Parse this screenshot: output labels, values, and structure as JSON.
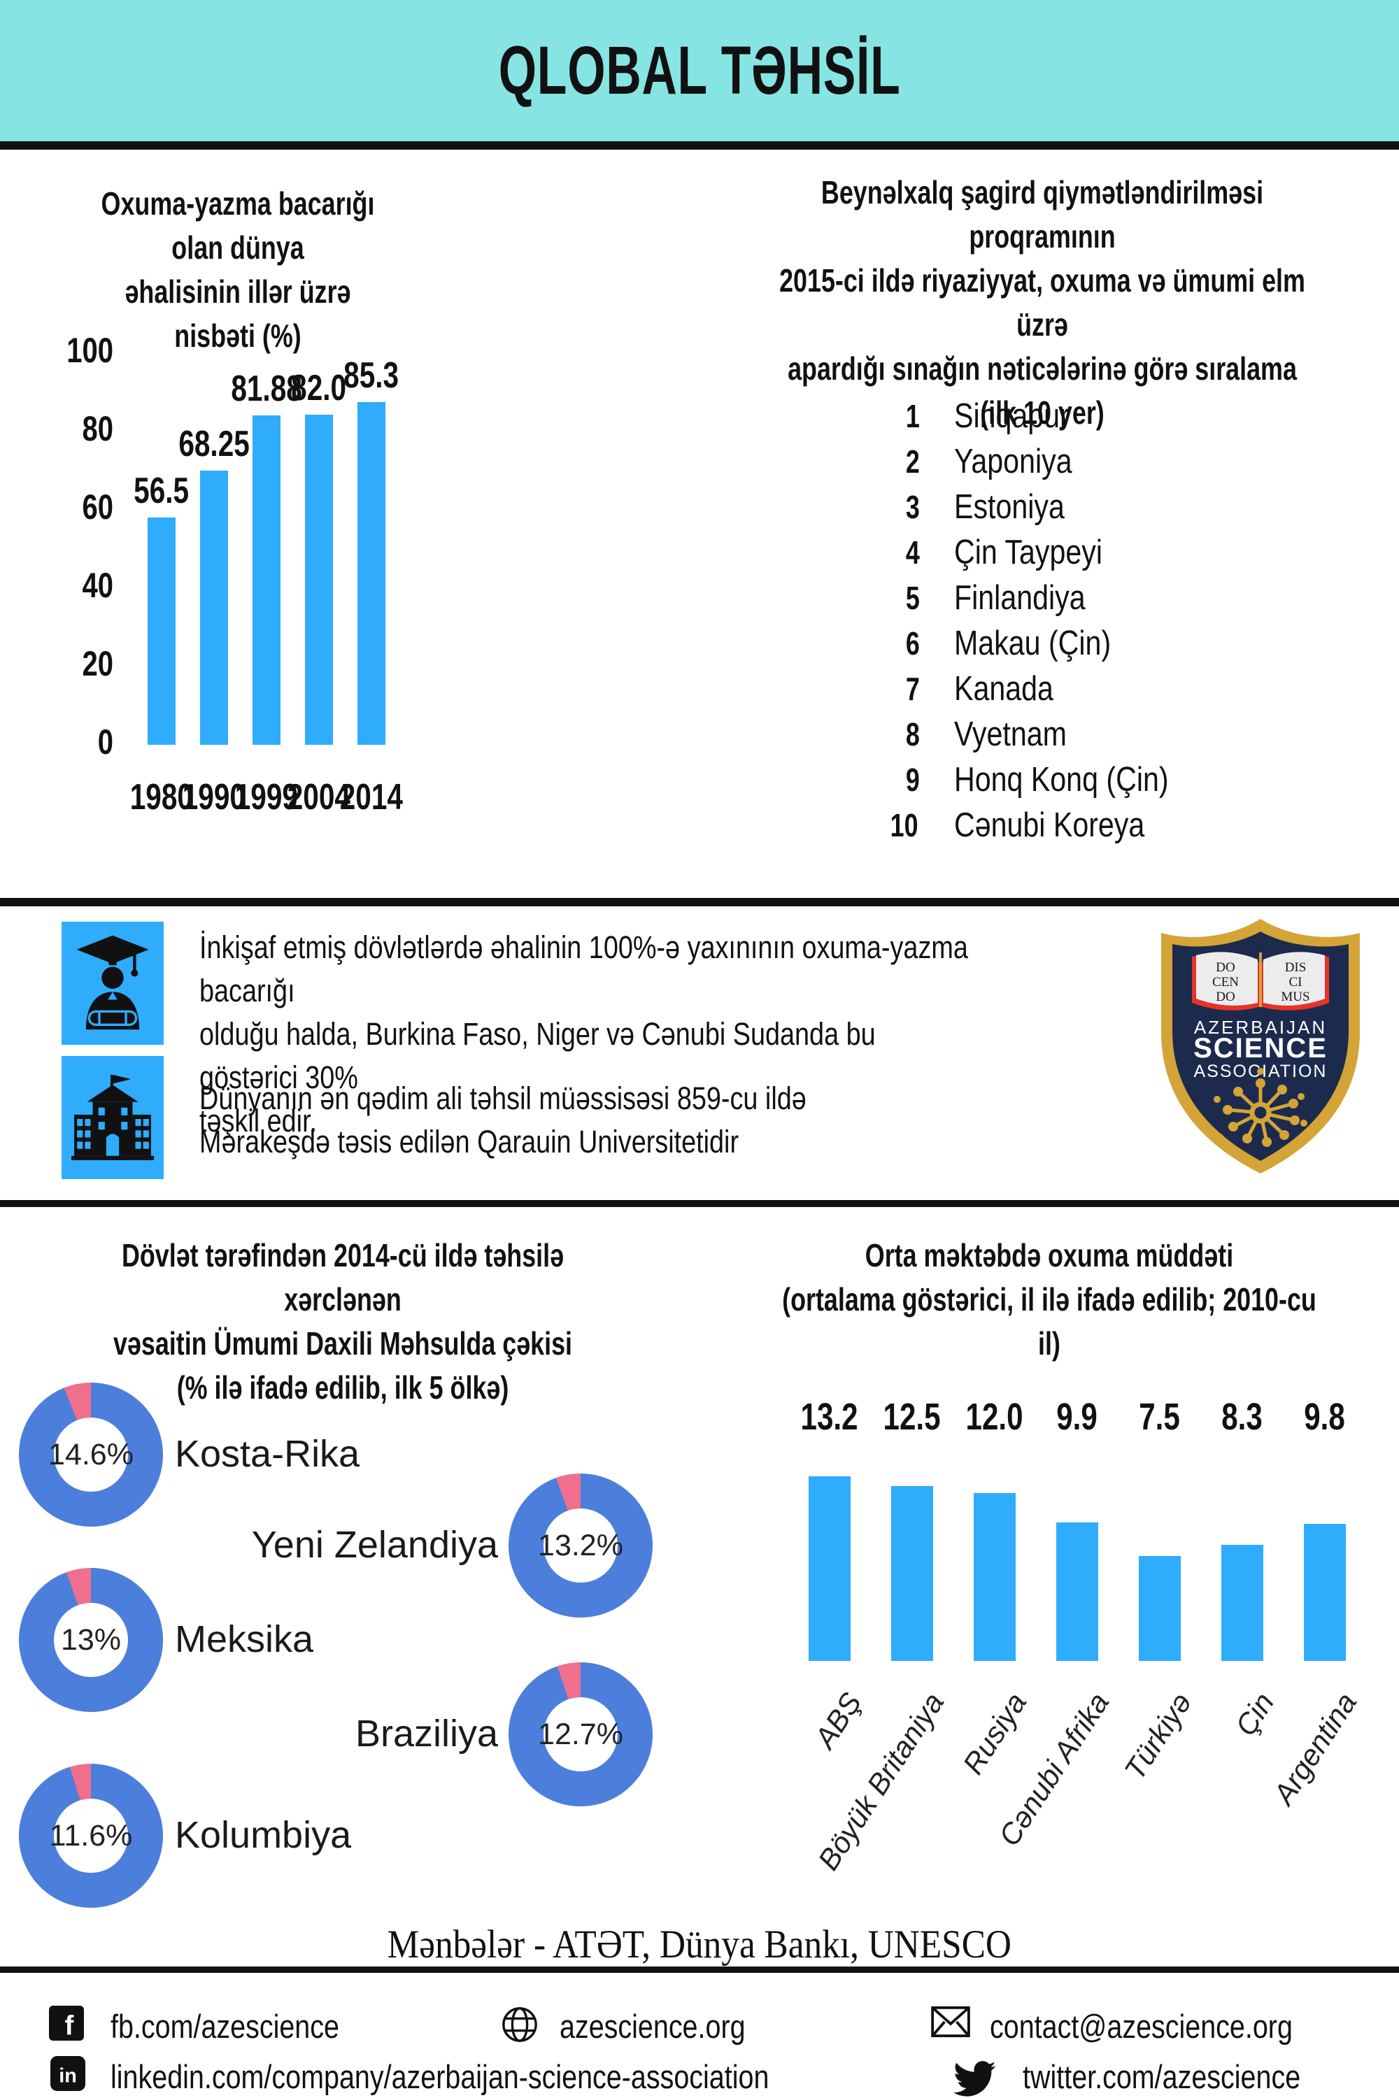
{
  "header": {
    "title": "QLOBAL TƏHSİL"
  },
  "colors": {
    "header_bg": "#86e5e3",
    "bar_blue": "#2facfc",
    "donut_blue": "#4c7edc",
    "donut_pink": "#ef6f8d",
    "ink": "#111111",
    "logo_navy": "#1c2b4d",
    "logo_gold": "#d4a437",
    "logo_red": "#e63329"
  },
  "chart_data": [
    {
      "id": "literacy",
      "type": "bar",
      "title": "Oxuma-yazma bacarığı olan dünya\nəhalisinin illər üzrə nisbəti (%)",
      "categories": [
        "1980",
        "1990",
        "1999",
        "2004",
        "2014"
      ],
      "values": [
        56.5,
        68.25,
        81.88,
        82.0,
        85.3
      ],
      "value_labels": [
        "56.5",
        "68.25",
        "81.88",
        "82.0",
        "85.3"
      ],
      "y_ticks": [
        "100",
        "80",
        "60",
        "40",
        "20",
        "0"
      ],
      "ylim": [
        0,
        100
      ],
      "grid": "off",
      "legend": "none"
    },
    {
      "id": "pisa-ranking",
      "type": "table",
      "title": "Beynəlxalq şagird qiymətləndirilməsi proqramının\n2015-ci ildə riyaziyyat, oxuma və ümumi elm üzrə\napardığı sınağın nəticələrinə görə sıralama\n(ilk 10 yer)",
      "items": [
        {
          "rank": "1",
          "name": "Sinqapur"
        },
        {
          "rank": "2",
          "name": "Yaponiya"
        },
        {
          "rank": "3",
          "name": "Estoniya"
        },
        {
          "rank": "4",
          "name": "Çin Taypeyi"
        },
        {
          "rank": "5",
          "name": "Finlandiya"
        },
        {
          "rank": "6",
          "name": "Makau (Çin)"
        },
        {
          "rank": "7",
          "name": "Kanada"
        },
        {
          "rank": "8",
          "name": "Vyetnam"
        },
        {
          "rank": "9",
          "name": "Honq Konq (Çin)"
        },
        {
          "rank": "10",
          "name": "Cənubi Koreya"
        }
      ]
    },
    {
      "id": "spending",
      "type": "pie",
      "title": "Dövlət tərəfindən 2014-cü ildə təhsilə xərclənən\nvəsaitin Ümumi Daxili Məhsulda çəkisi\n(% ilə ifadə edilib, ilk 5 ölkə)",
      "items": [
        {
          "label": "Kosta-Rika",
          "value": 14.6,
          "display": "14.6%"
        },
        {
          "label": "Yeni Zelandiya",
          "value": 13.2,
          "display": "13.2%"
        },
        {
          "label": "Meksika",
          "value": 13,
          "display": "13%"
        },
        {
          "label": "Braziliya",
          "value": 12.7,
          "display": "12.7%"
        },
        {
          "label": "Kolumbiya",
          "value": 11.6,
          "display": "11.6%"
        }
      ]
    },
    {
      "id": "schooling",
      "type": "bar",
      "title": "Orta məktəbdə oxuma müddəti\n(ortalama göstərici, il ilə ifadə edilib; 2010-cu il)",
      "categories": [
        "ABŞ",
        "Böyük Britaniya",
        "Rusiya",
        "Cənubi Afrika",
        "Türkiyə",
        "Çin",
        "Argentina"
      ],
      "values": [
        13.2,
        12.5,
        12.0,
        9.9,
        7.5,
        8.3,
        9.8
      ],
      "value_labels": [
        "13.2",
        "12.5",
        "12.0",
        "9.9",
        "7.5",
        "8.3",
        "9.8"
      ],
      "grid": "off",
      "legend": "none"
    }
  ],
  "facts": [
    {
      "icon": "graduate-icon",
      "text": "İnkişaf etmiş dövlətlərdə əhalinin 100%-ə yaxınının oxuma-yazma bacarığı\nolduğu halda, Burkina Faso, Niger və Cənubi Sudanda bu göstərici 30%\ntəşkil edir."
    },
    {
      "icon": "school-icon",
      "text": "Dünyanın ən qədim ali təhsil müəssisəsi 859-cu ildə\nMərakeşdə təsis edilən Qarauin Universitetidir"
    }
  ],
  "logo": {
    "motto_left": [
      "DO",
      "CEN",
      "DO"
    ],
    "motto_right": [
      "DIS",
      "CI",
      "MUS"
    ],
    "line1": "AZERBAIJAN",
    "line2": "SCIENCE",
    "line3": "ASSOCIATION"
  },
  "sources": "Mənbələr - ATƏT, Dünya Bankı, UNESCO",
  "footer": {
    "rows": [
      [
        {
          "icon": "facebook-icon",
          "text": "fb.com/azescience"
        },
        {
          "icon": "globe-icon",
          "text": "azescience.org"
        },
        {
          "icon": "email-icon",
          "text": "contact@azescience.org"
        }
      ],
      [
        {
          "icon": "linkedin-icon",
          "text": "linkedin.com/company/azerbaijan-science-association"
        },
        {
          "icon": "twitter-icon",
          "text": "twitter.com/azescience"
        }
      ]
    ]
  }
}
